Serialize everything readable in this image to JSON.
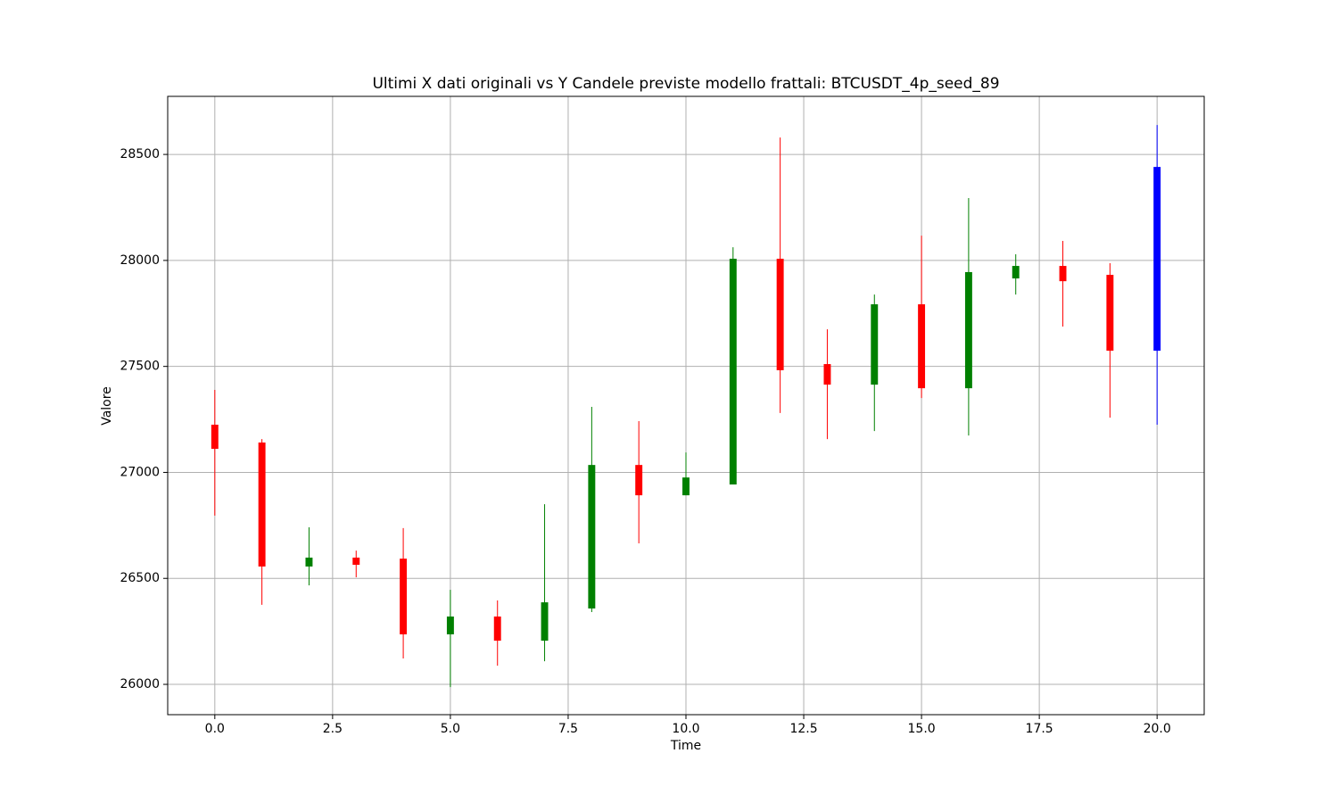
{
  "chart_data": {
    "type": "candlestick",
    "title": "Ultimi X dati originali vs Y Candele previste modello frattali: BTCUSDT_4p_seed_89",
    "x_label": "Time",
    "y_label": "Valore",
    "x": [
      0,
      1,
      2,
      3,
      4,
      5,
      6,
      7,
      8,
      9,
      10,
      11,
      12,
      13,
      14,
      15,
      16,
      17,
      18,
      19,
      20
    ],
    "open": [
      27225,
      27141,
      26556,
      26598,
      26593,
      26236,
      26320,
      26206,
      26358,
      27035,
      26892,
      26943,
      28008,
      27511,
      27414,
      27793,
      27397,
      27915,
      27974,
      27932,
      27574
    ],
    "high": [
      27389,
      27157,
      26741,
      26631,
      26737,
      26446,
      26396,
      26850,
      27309,
      27242,
      27094,
      28062,
      28580,
      27675,
      27839,
      28117,
      28294,
      28029,
      28092,
      27987,
      28639
    ],
    "low": [
      26796,
      26375,
      26467,
      26505,
      26122,
      25987,
      26088,
      26109,
      26341,
      26665,
      26892,
      26943,
      27280,
      27157,
      27195,
      27351,
      27174,
      27839,
      27688,
      27258,
      27225
    ],
    "close": [
      27111,
      26556,
      26598,
      26564,
      26236,
      26320,
      26206,
      26387,
      27035,
      26892,
      26976,
      28008,
      27482,
      27414,
      27793,
      27397,
      27945,
      27974,
      27902,
      27574,
      28441
    ],
    "colors": [
      "red",
      "red",
      "green",
      "red",
      "red",
      "green",
      "red",
      "green",
      "green",
      "red",
      "green",
      "green",
      "red",
      "red",
      "green",
      "red",
      "green",
      "green",
      "red",
      "red",
      "blue"
    ],
    "xlim": [
      -1,
      21
    ],
    "ylim": [
      25857,
      28774
    ],
    "xticks": [
      {
        "value": 0,
        "label": "0.0"
      },
      {
        "value": 2.5,
        "label": "2.5"
      },
      {
        "value": 5,
        "label": "5.0"
      },
      {
        "value": 7.5,
        "label": "7.5"
      },
      {
        "value": 10,
        "label": "10.0"
      },
      {
        "value": 12.5,
        "label": "12.5"
      },
      {
        "value": 15,
        "label": "15.0"
      },
      {
        "value": 17.5,
        "label": "17.5"
      },
      {
        "value": 20,
        "label": "20.0"
      }
    ],
    "yticks": [
      26000,
      26500,
      27000,
      27500,
      28000,
      28500
    ],
    "grid": true
  }
}
